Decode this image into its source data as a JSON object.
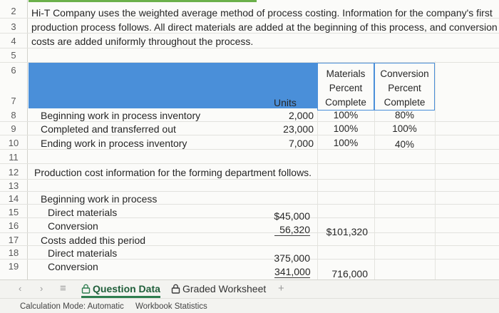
{
  "intro": {
    "line1": "Hi-T Company uses the weighted average method of process costing. Information for the company's first",
    "line2": "production process follows. All direct materials are added at the beginning of this process, and conversion",
    "line3": "costs are added uniformly throughout the process."
  },
  "row_numbers": [
    "2",
    "3",
    "4",
    "5",
    "6",
    "7",
    "8",
    "9",
    "10",
    "11",
    "12",
    "13",
    "14",
    "15",
    "16",
    "17",
    "18",
    "19"
  ],
  "header": {
    "units": "Units",
    "materials": [
      "Materials",
      "Percent",
      "Complete"
    ],
    "conversion": [
      "Conversion",
      "Percent",
      "Complete"
    ]
  },
  "units_table": [
    {
      "label": "Beginning work in process inventory",
      "units": "2,000",
      "materials": "100%",
      "conversion": "80%"
    },
    {
      "label": "Completed and transferred out",
      "units": "23,000",
      "materials": "100%",
      "conversion": "100%"
    },
    {
      "label": "Ending work in process inventory",
      "units": "7,000",
      "materials": "100%",
      "conversion": "40%"
    }
  ],
  "cost_section": {
    "title": "Production cost information for the forming department follows.",
    "beginning_wip": "Beginning work in process",
    "bwip_dm": "Direct materials",
    "bwip_dm_value": "$45,000",
    "bwip_conv": "Conversion",
    "bwip_conv_value": "56,320",
    "bwip_total": "$101,320",
    "added": "Costs added this period",
    "added_dm": "Direct materials",
    "added_dm_value": "375,000",
    "added_conv": "Conversion",
    "added_conv_value": "341,000",
    "added_total": "716,000"
  },
  "tabs": {
    "prev": "‹",
    "next": "›",
    "menu": "≡",
    "question_data": "Question Data",
    "graded_worksheet": "Graded Worksheet",
    "add": "+"
  },
  "status": {
    "calc_mode": "Calculation Mode: Automatic",
    "workbook_stats": "Workbook Statistics"
  }
}
